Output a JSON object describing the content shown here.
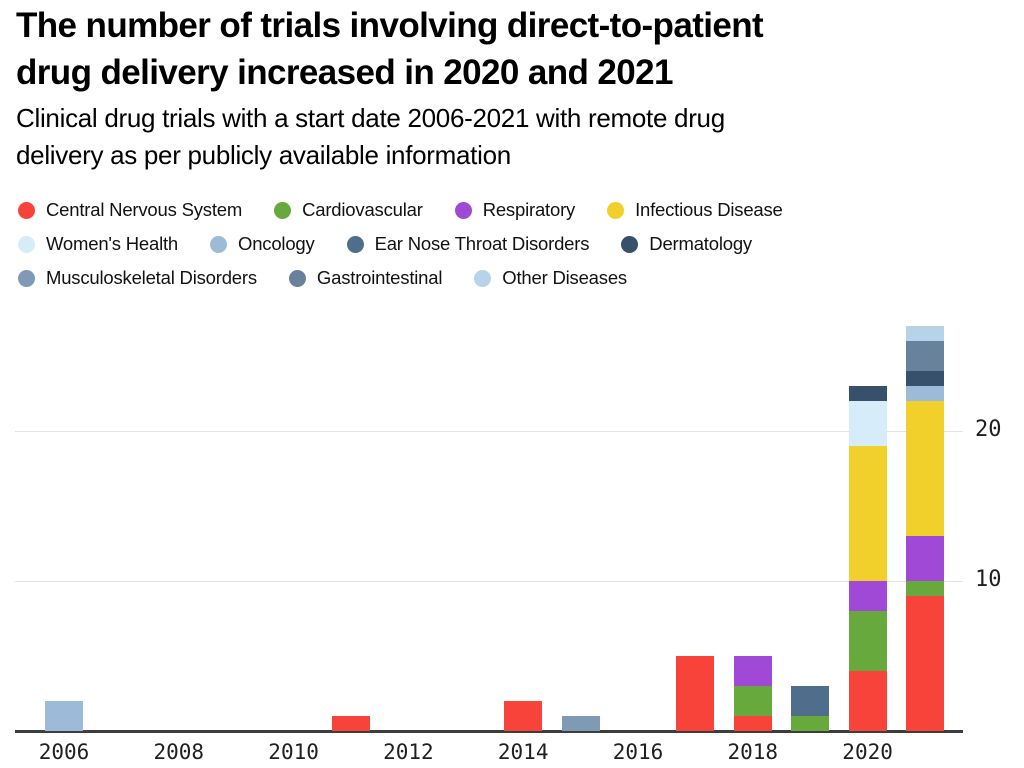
{
  "header": {
    "title_lines": [
      "The number of trials involving direct-to-patient",
      "drug delivery increased in 2020 and 2021"
    ],
    "subtitle_lines": [
      "Clinical drug trials with a start date 2006-2021 with remote drug",
      "delivery as per publicly available information"
    ]
  },
  "legend": {
    "rows": [
      [
        {
          "label": "Central Nervous System",
          "color": "#f7433a"
        },
        {
          "label": "Cardiovascular",
          "color": "#67a93c"
        },
        {
          "label": "Respiratory",
          "color": "#9f49d6"
        },
        {
          "label": "Infectious Disease",
          "color": "#f1d02b"
        }
      ],
      [
        {
          "label": "Women's Health",
          "color": "#d7ecf9"
        },
        {
          "label": "Oncology",
          "color": "#9dbbd8"
        },
        {
          "label": "Ear Nose Throat Disorders",
          "color": "#4f6e8c"
        },
        {
          "label": "Dermatology",
          "color": "#37506b"
        }
      ],
      [
        {
          "label": "Musculoskeletal Disorders",
          "color": "#7f9ab4"
        },
        {
          "label": "Gastrointestinal",
          "color": "#68829c"
        },
        {
          "label": "Other Diseases",
          "color": "#b6d3ea"
        }
      ]
    ]
  },
  "chart_data": {
    "type": "bar",
    "subtype": "stacked-vertical",
    "title": "The number of trials involving direct-to-patient drug delivery increased in 2020 and 2021",
    "subtitle": "Clinical drug trials with a start date 2006-2021 with remote drug delivery as per publicly available information",
    "xlabel": "",
    "ylabel": "",
    "ylim": [
      0,
      27.5
    ],
    "yticks": [
      10,
      20
    ],
    "ytick_side": "right",
    "grid": "horizontal",
    "legend_position": "top-left",
    "xtick_labels": [
      "2006",
      "2008",
      "2010",
      "2012",
      "2014",
      "2016",
      "2018",
      "2020"
    ],
    "x_range_years": [
      2006,
      2021
    ],
    "categories": [
      "Central Nervous System",
      "Cardiovascular",
      "Respiratory",
      "Infectious Disease",
      "Women's Health",
      "Oncology",
      "Ear Nose Throat Disorders",
      "Dermatology",
      "Musculoskeletal Disorders",
      "Gastrointestinal",
      "Other Diseases"
    ],
    "bars": [
      {
        "year": 2006,
        "total": 2,
        "segments": [
          {
            "category": "Oncology",
            "value": 2
          }
        ]
      },
      {
        "year": 2011,
        "total": 1,
        "segments": [
          {
            "category": "Central Nervous System",
            "value": 1
          }
        ]
      },
      {
        "year": 2014,
        "total": 2,
        "segments": [
          {
            "category": "Central Nervous System",
            "value": 2
          }
        ]
      },
      {
        "year": 2015,
        "total": 1,
        "segments": [
          {
            "category": "Musculoskeletal Disorders",
            "value": 1
          }
        ]
      },
      {
        "year": 2017,
        "total": 5,
        "segments": [
          {
            "category": "Central Nervous System",
            "value": 5
          }
        ]
      },
      {
        "year": 2018,
        "total": 5,
        "segments": [
          {
            "category": "Central Nervous System",
            "value": 1
          },
          {
            "category": "Cardiovascular",
            "value": 2
          },
          {
            "category": "Respiratory",
            "value": 2
          }
        ]
      },
      {
        "year": 2019,
        "total": 3,
        "segments": [
          {
            "category": "Cardiovascular",
            "value": 1
          },
          {
            "category": "Ear Nose Throat Disorders",
            "value": 2
          }
        ]
      },
      {
        "year": 2020,
        "total": 23,
        "segments": [
          {
            "category": "Central Nervous System",
            "value": 4
          },
          {
            "category": "Cardiovascular",
            "value": 4
          },
          {
            "category": "Respiratory",
            "value": 2
          },
          {
            "category": "Infectious Disease",
            "value": 9
          },
          {
            "category": "Women's Health",
            "value": 3
          },
          {
            "category": "Dermatology",
            "value": 1
          }
        ]
      },
      {
        "year": 2021,
        "total": 27,
        "segments": [
          {
            "category": "Central Nervous System",
            "value": 9
          },
          {
            "category": "Cardiovascular",
            "value": 1
          },
          {
            "category": "Respiratory",
            "value": 3
          },
          {
            "category": "Infectious Disease",
            "value": 9
          },
          {
            "category": "Oncology",
            "value": 1
          },
          {
            "category": "Dermatology",
            "value": 1
          },
          {
            "category": "Gastrointestinal",
            "value": 2
          },
          {
            "category": "Other Diseases",
            "value": 1
          }
        ]
      }
    ]
  }
}
